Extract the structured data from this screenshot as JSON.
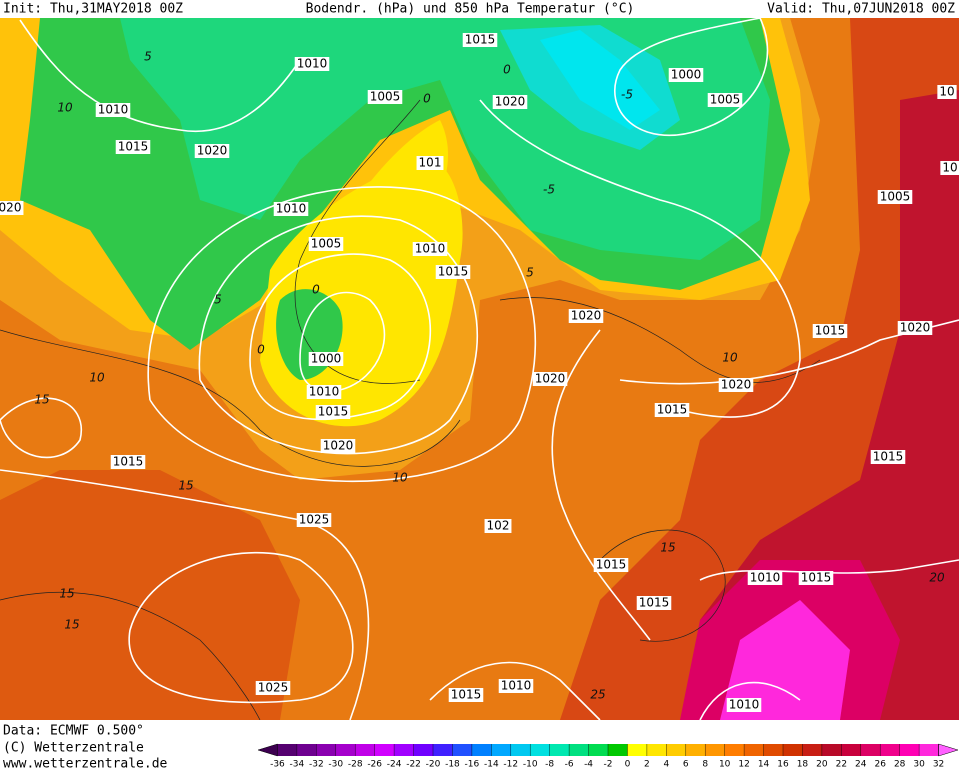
{
  "header": {
    "init": "Init: Thu,31MAY2018 00Z",
    "title": "Bodendr. (hPa) und 850 hPa Temperatur (°C)",
    "valid": "Valid: Thu,07JUN2018 00Z"
  },
  "isobar_labels": [
    "1015",
    "1010",
    "1000",
    "1005",
    "1020",
    "1005",
    "1010",
    "1015",
    "1020",
    "101",
    "020",
    "1010",
    "1005",
    "1005",
    "1010",
    "1015",
    "1020",
    "1015",
    "1020",
    "1000",
    "1020",
    "1020",
    "1010",
    "1015",
    "1015",
    "1020",
    "1015",
    "1015",
    "1025",
    "102",
    "1015",
    "1010",
    "1015",
    "1015",
    "1025",
    "1015",
    "1010",
    "1010",
    "10",
    "10"
  ],
  "temperature_labels": [
    "10",
    "5",
    "0",
    "10",
    "15",
    "15",
    "10",
    "15",
    "15",
    "5",
    "0",
    "-5",
    "10",
    "15",
    "25",
    "20",
    "-5",
    "0",
    "0",
    "5"
  ],
  "footer": {
    "data": "Data: ECMWF  0.500°",
    "copyright": "(C) Wetterzentrale",
    "url": "www.wetterzentrale.de"
  },
  "colorbar": {
    "ticks": [
      -36,
      -34,
      -32,
      -30,
      -28,
      -26,
      -24,
      -22,
      -20,
      -18,
      -16,
      -14,
      -12,
      -10,
      -8,
      -6,
      -4,
      -2,
      0,
      2,
      4,
      6,
      8,
      10,
      12,
      14,
      16,
      18,
      20,
      22,
      24,
      26,
      28,
      30,
      32
    ],
    "colors": [
      "#3c0050",
      "#550070",
      "#6e0090",
      "#8a00b0",
      "#a500cc",
      "#c000e8",
      "#d000ff",
      "#a000ff",
      "#7000ff",
      "#4020ff",
      "#2050ff",
      "#0080ff",
      "#00a8ff",
      "#00c8f0",
      "#00e0e0",
      "#00e8b0",
      "#00e080",
      "#00dc50",
      "#00c800",
      "#ffff00",
      "#ffe600",
      "#ffcc00",
      "#ffb000",
      "#ff9600",
      "#ff7d00",
      "#f06400",
      "#e04b00",
      "#d03200",
      "#c81e14",
      "#b80a28",
      "#c8003c",
      "#dc0064",
      "#f0008c",
      "#ff00b4",
      "#ff28dc",
      "#ff60ff"
    ]
  }
}
